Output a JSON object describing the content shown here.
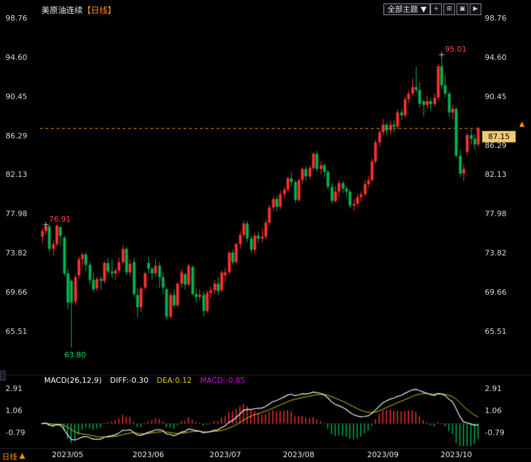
{
  "header": {
    "title": "美原油连续",
    "period_tag": "【日线】",
    "theme_dropdown_label": "全部主题",
    "dropdown_arrow_icon": "▼",
    "toolbar_buttons": [
      {
        "name": "add",
        "icon": "plus-icon",
        "glyph": "+"
      },
      {
        "name": "split-grid",
        "icon": "grid-icon",
        "glyph": "⊞"
      },
      {
        "name": "page-view",
        "icon": "panel-icon",
        "glyph": "▣"
      },
      {
        "name": "play",
        "icon": "play-icon",
        "glyph": "▶"
      }
    ]
  },
  "footer": {
    "period_label": "日线",
    "up_arrow_icon": "▲"
  },
  "colors": {
    "background": "#000000",
    "up": "#ff3030",
    "down": "#00b450",
    "accent_orange": "#ff9000",
    "diff_line": "#ffffff",
    "dea_line": "#e0d000",
    "macd_value": "#e000e0",
    "tick_text": "#d8d8d8",
    "price_label_bg": "#eecb78",
    "marker": "#cccccc"
  },
  "chart_data": {
    "type": "candlestick",
    "title": "美原油连续 日线",
    "ylim": [
      61.6,
      99.0
    ],
    "y_ticks": [
      98.76,
      94.6,
      90.45,
      86.29,
      82.13,
      77.98,
      73.82,
      69.66,
      65.51
    ],
    "x_ticks": [
      {
        "label": "2023/05",
        "index": 5
      },
      {
        "label": "2023/06",
        "index": 27
      },
      {
        "label": "2023/07",
        "index": 48
      },
      {
        "label": "2023/08",
        "index": 68
      },
      {
        "label": "2023/09",
        "index": 91
      },
      {
        "label": "2023/10",
        "index": 111
      }
    ],
    "current_price": 87.15,
    "current_price_text": "87.15",
    "price_marker_icon": "▲",
    "annotations": [
      {
        "text": "76.91",
        "index": 1,
        "at": "high",
        "color": "#ff4545",
        "marker": true
      },
      {
        "text": "63.80",
        "index": 8,
        "at": "low",
        "color": "#00e060",
        "marker": false
      },
      {
        "text": "95.01",
        "index": 109,
        "at": "high",
        "color": "#ff4545",
        "marker": true
      }
    ],
    "candles": [
      [
        75.6,
        76.5,
        74.9,
        76.2
      ],
      [
        76.2,
        76.91,
        75.8,
        76.7
      ],
      [
        76.7,
        76.8,
        74,
        74.3
      ],
      [
        74.3,
        75.2,
        73.6,
        74.8
      ],
      [
        74.8,
        76.9,
        74.5,
        76.8
      ],
      [
        76.6,
        76.7,
        74.6,
        75.7
      ],
      [
        75.5,
        75.7,
        71.4,
        71.7
      ],
      [
        71.7,
        72.2,
        67.9,
        68.6
      ],
      [
        70.9,
        71,
        63.8,
        68.6
      ],
      [
        68.7,
        71.6,
        68.3,
        71.3
      ],
      [
        71.5,
        73.5,
        71.1,
        73.2
      ],
      [
        73.2,
        73.9,
        72.4,
        73.7
      ],
      [
        73.7,
        74,
        71.9,
        72.6
      ],
      [
        72.6,
        72.9,
        70.5,
        71
      ],
      [
        71,
        71.8,
        69.7,
        70
      ],
      [
        70.1,
        71.3,
        69.8,
        71.1
      ],
      [
        71.1,
        71.4,
        69.9,
        70.9
      ],
      [
        70.9,
        73,
        70.6,
        72.8
      ],
      [
        72.8,
        73.3,
        71.6,
        71.9
      ],
      [
        71.9,
        73.2,
        71.2,
        71.7
      ],
      [
        71.7,
        72.3,
        71,
        72
      ],
      [
        72,
        73.4,
        71.7,
        72.9
      ],
      [
        72.9,
        74.7,
        72.6,
        74.3
      ],
      [
        74.3,
        74.5,
        71.5,
        71.8
      ],
      [
        71.8,
        73.2,
        71.4,
        72.7
      ],
      [
        72.9,
        73.4,
        69.2,
        69.5
      ],
      [
        69.4,
        70.1,
        67,
        68.1
      ],
      [
        68.1,
        70.3,
        67.6,
        70.1
      ],
      [
        70.2,
        71.9,
        69.9,
        71.7
      ],
      [
        72.8,
        73.4,
        71.6,
        72.2
      ],
      [
        72.2,
        72.4,
        71,
        71.7
      ],
      [
        71.7,
        73.2,
        71.3,
        72.5
      ],
      [
        72.5,
        72.9,
        70.1,
        71.3
      ],
      [
        71.3,
        71.8,
        69.5,
        70.2
      ],
      [
        70,
        70.2,
        66.8,
        67.1
      ],
      [
        67.1,
        69.7,
        66.9,
        69.4
      ],
      [
        69.4,
        70,
        68,
        68.3
      ],
      [
        68.3,
        70.8,
        68.1,
        70.6
      ],
      [
        70.6,
        72.1,
        70.2,
        71.8
      ],
      [
        71.6,
        71.8,
        70,
        70.5
      ],
      [
        70.5,
        72.7,
        70.3,
        72.5
      ],
      [
        72.4,
        72.5,
        69.3,
        69.5
      ],
      [
        69.5,
        70.1,
        68.6,
        69.2
      ],
      [
        69.2,
        70,
        68.8,
        69.4
      ],
      [
        69.4,
        69.8,
        67.1,
        67.7
      ],
      [
        67.7,
        69.9,
        67.5,
        69.6
      ],
      [
        69.6,
        70.3,
        69,
        69.9
      ],
      [
        69.9,
        71,
        69.5,
        70.6
      ],
      [
        70.6,
        71.3,
        69.4,
        69.8
      ],
      [
        69.9,
        72,
        69.7,
        71.8
      ],
      [
        71.5,
        72.3,
        70.7,
        71.8
      ],
      [
        71.8,
        74.1,
        71.6,
        73.9
      ],
      [
        73.9,
        74.2,
        72.6,
        72.9
      ],
      [
        72.9,
        75,
        72.7,
        74.8
      ],
      [
        74.8,
        76.2,
        74.3,
        75.8
      ],
      [
        75.8,
        77.3,
        75.5,
        77
      ],
      [
        77,
        77.3,
        75,
        75.4
      ],
      [
        75.4,
        75.7,
        73.9,
        74.2
      ],
      [
        74.2,
        76,
        73.8,
        75.7
      ],
      [
        75.7,
        76.1,
        74.9,
        75.4
      ],
      [
        75.4,
        76.5,
        75,
        75.6
      ],
      [
        75.6,
        77.4,
        75.3,
        77.1
      ],
      [
        77.1,
        79,
        76.8,
        78.7
      ],
      [
        78.7,
        79.9,
        78.3,
        79.6
      ],
      [
        79.6,
        79.9,
        78.3,
        78.8
      ],
      [
        78.8,
        80.5,
        78.5,
        80.1
      ],
      [
        80.1,
        80.9,
        79.6,
        80.6
      ],
      [
        80.6,
        82,
        80.3,
        81.8
      ],
      [
        81.8,
        82.4,
        80.9,
        81.4
      ],
      [
        81.4,
        81.6,
        79.2,
        79.5
      ],
      [
        79.5,
        81.8,
        79.3,
        81.6
      ],
      [
        81.6,
        83,
        81.2,
        82.8
      ],
      [
        82.8,
        83.1,
        81.5,
        82
      ],
      [
        82,
        83.2,
        81.7,
        82.9
      ],
      [
        82.9,
        84.6,
        82.6,
        84.4
      ],
      [
        84.4,
        84.7,
        82.5,
        82.8
      ],
      [
        82.8,
        83.6,
        82.2,
        83.2
      ],
      [
        83.2,
        83.4,
        81.9,
        82.5
      ],
      [
        82.5,
        82.7,
        80.6,
        80.9
      ],
      [
        80.9,
        81.3,
        79.1,
        79.4
      ],
      [
        79.4,
        81,
        79.2,
        80.4
      ],
      [
        80.4,
        81.6,
        79.8,
        81.3
      ],
      [
        81.3,
        81.5,
        80.2,
        80.7
      ],
      [
        80.7,
        81,
        79.8,
        80.4
      ],
      [
        80.4,
        80.6,
        78.6,
        78.9
      ],
      [
        78.9,
        79.6,
        78.3,
        79.1
      ],
      [
        79.1,
        80.2,
        78.8,
        79.8
      ],
      [
        79.8,
        80.4,
        79.3,
        80.1
      ],
      [
        80.1,
        81.6,
        79.9,
        81.2
      ],
      [
        81.2,
        82,
        80.8,
        81.6
      ],
      [
        81.6,
        83.9,
        81.4,
        83.6
      ],
      [
        83.6,
        85.9,
        83.3,
        85.6
      ],
      [
        85.6,
        87,
        85.2,
        86.7
      ],
      [
        86.7,
        88.1,
        86.3,
        87.5
      ],
      [
        87.5,
        87.7,
        86.4,
        86.9
      ],
      [
        86.9,
        87.9,
        86.5,
        87.5
      ],
      [
        87.5,
        88,
        86.7,
        87.3
      ],
      [
        87.3,
        89.1,
        87,
        88.8
      ],
      [
        88.8,
        89.2,
        88,
        88.5
      ],
      [
        88.5,
        90.5,
        88.2,
        90.2
      ],
      [
        90.2,
        91.2,
        89.8,
        90.8
      ],
      [
        90.8,
        92.4,
        90.5,
        91.5
      ],
      [
        91.5,
        93.7,
        90.9,
        91.2
      ],
      [
        91.2,
        92,
        89.3,
        89.7
      ],
      [
        90,
        90.1,
        88.4,
        89.6
      ],
      [
        89.6,
        90.6,
        89.2,
        90
      ],
      [
        90,
        90.4,
        89,
        89.7
      ],
      [
        89.7,
        90.8,
        89.4,
        90.4
      ],
      [
        90.4,
        93.9,
        90.1,
        93.7
      ],
      [
        93.7,
        95.01,
        91.3,
        91.7
      ],
      [
        91.7,
        92.8,
        90.4,
        90.8
      ],
      [
        90.8,
        91,
        88.3,
        88.8
      ],
      [
        88.8,
        89.6,
        88.1,
        89.2
      ],
      [
        89.2,
        89.3,
        84,
        84.2
      ],
      [
        84.2,
        84.9,
        81.9,
        82.3
      ],
      [
        82.3,
        83.3,
        81.5,
        82.8
      ],
      [
        84.6,
        86.6,
        84.2,
        86.4
      ],
      [
        86.4,
        87,
        85.4,
        86
      ],
      [
        86,
        86.5,
        84.9,
        85.4
      ],
      [
        85.4,
        87.3,
        85.2,
        87.15
      ]
    ],
    "macd": {
      "title": "MACD(26,12,9)",
      "diff_text": "DIFF:-0.30",
      "dea_text": "DEA:0.12",
      "macd_text": "MACD:-0.85",
      "params": [
        26,
        12,
        9
      ],
      "y_ticks": [
        2.91,
        1.06,
        -0.79
      ],
      "ylim": [
        -1.9,
        3.0
      ]
    }
  }
}
